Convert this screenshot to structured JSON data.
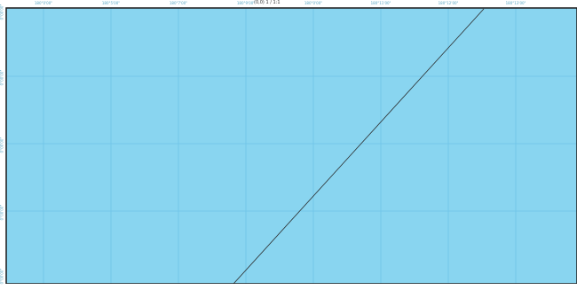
{
  "map": {
    "zoom_label": "(0,0) 1 / 1:1",
    "lon_labels": [
      "180°0'00\"",
      "180°5'00\"",
      "180°7'00\"",
      "180°9'00\"",
      "180°0'00\"",
      "180°11'00\"",
      "180°12'00\"",
      "180°13'00\""
    ],
    "lat_labels": [
      "0°00'00\"",
      "0°00'00\"",
      "0°00'00\"",
      "0°00'00\"",
      "0°00'00\""
    ],
    "colors": {
      "water": "#89d5f0",
      "grid": "#6fc3e8",
      "frame": "#1a1a1a",
      "track_line": "#2a2a2a",
      "label": "#5aa7c4"
    },
    "features": [
      {
        "type": "track-line",
        "description": "diagonal route line"
      }
    ]
  }
}
